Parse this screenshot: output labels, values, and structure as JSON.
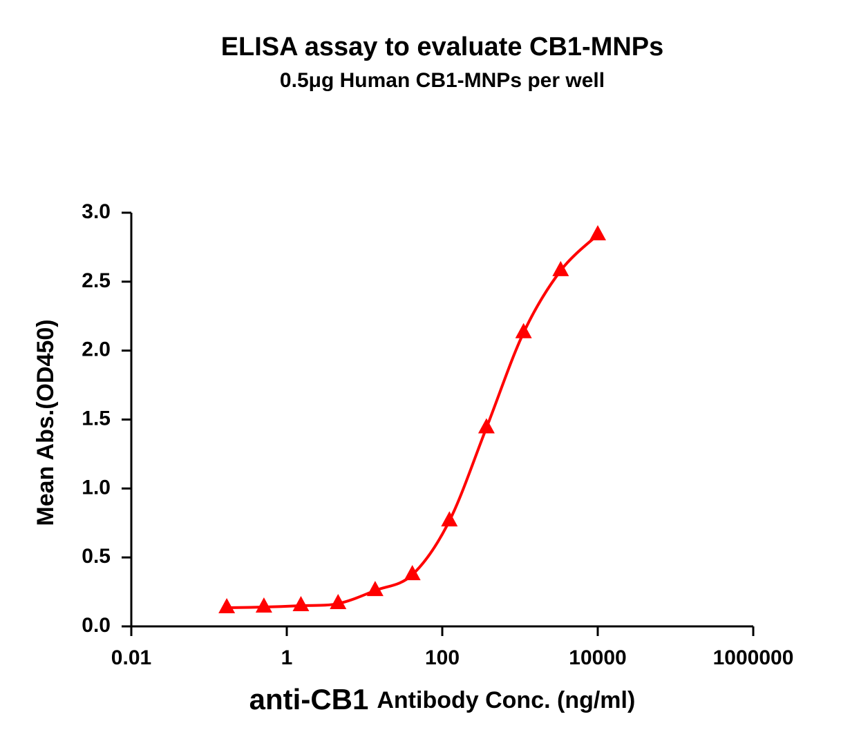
{
  "chart_data": {
    "type": "line",
    "log_x": true,
    "title": "ELISA assay to evaluate CB1-MNPs",
    "subtitle": "0.5μg Human CB1-MNPs per well",
    "x_label": [
      "anti-CB1",
      "Antibody Conc. (ng/ml)"
    ],
    "y_label": "Mean Abs.(OD450)",
    "xlim": [
      0.01,
      1000000
    ],
    "xticks": [
      0.01,
      1,
      100,
      10000,
      1000000
    ],
    "ylim": [
      0,
      3
    ],
    "yticks": [
      {
        "value": 0,
        "label": "0.0"
      },
      0.5,
      {
        "value": 1,
        "label": "1.0"
      },
      1.5,
      {
        "value": 2,
        "label": "2.0"
      },
      2.5,
      {
        "value": 3,
        "label": "3.0"
      }
    ],
    "series": [
      {
        "color": "#ff0000",
        "x": [
          0.169,
          0.508,
          1.52,
          4.57,
          13.7,
          41.2,
          123.5,
          370,
          1111,
          3333,
          10000
        ],
        "values": [
          0.135,
          0.14,
          0.15,
          0.165,
          0.26,
          0.375,
          0.765,
          1.44,
          2.13,
          2.58,
          2.84
        ]
      }
    ]
  }
}
